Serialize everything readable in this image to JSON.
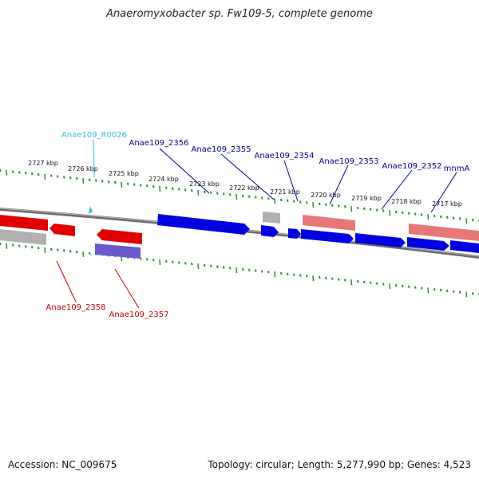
{
  "title": "Anaeromyxobacter sp. Fw109-5, complete genome",
  "footer": {
    "accession": "Accession: NC_009675",
    "summary": "Topology: circular; Length: 5,277,990 bp; Genes: 4,523"
  },
  "colors": {
    "forward": "#0000e0",
    "forward_label": "#00008b",
    "reverse": "#e00000",
    "reverse_label": "#c00000",
    "rna": "#33bbdd",
    "pseudo": "#b0b0b0",
    "reverse_pale": "#e87878",
    "reverse_purple": "#6a5acd",
    "backbone": "#7a7a7a",
    "ruler": "#2e8b2e"
  },
  "ruler_labels": [
    "2727 kbp",
    "2726 kbp",
    "2725 kbp",
    "2724 kbp",
    "2723 kbp",
    "2722 kbp",
    "2721 kbp",
    "2720 kbp",
    "2719 kbp",
    "2718 kbp",
    "2717 kbp"
  ],
  "gene_labels": [
    {
      "id": "rna_0026",
      "text": "Anae109_R0026",
      "kind": "rna"
    },
    {
      "id": "g2356",
      "text": "Anae109_2356",
      "kind": "forward"
    },
    {
      "id": "g2355",
      "text": "Anae109_2355",
      "kind": "forward"
    },
    {
      "id": "g2354",
      "text": "Anae109_2354",
      "kind": "forward"
    },
    {
      "id": "g2353",
      "text": "Anae109_2353",
      "kind": "forward"
    },
    {
      "id": "g2352",
      "text": "Anae109_2352",
      "kind": "forward"
    },
    {
      "id": "mnmA",
      "text": "mnmA",
      "kind": "forward"
    },
    {
      "id": "g2358",
      "text": "Anae109_2358",
      "kind": "reverse"
    },
    {
      "id": "g2357",
      "text": "Anae109_2357",
      "kind": "reverse"
    }
  ]
}
